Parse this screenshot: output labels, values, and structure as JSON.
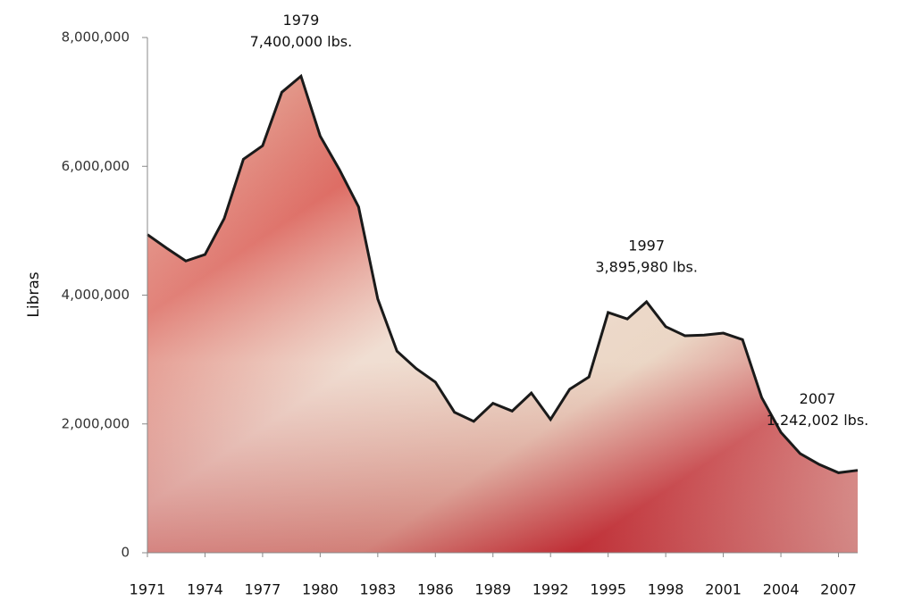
{
  "chart_data": {
    "type": "area",
    "y_label": "Libras",
    "x": [
      1971,
      1972,
      1973,
      1974,
      1975,
      1976,
      1977,
      1978,
      1979,
      1980,
      1981,
      1982,
      1983,
      1984,
      1985,
      1986,
      1987,
      1988,
      1989,
      1990,
      1991,
      1992,
      1993,
      1994,
      1995,
      1996,
      1997,
      1998,
      1999,
      2000,
      2001,
      2002,
      2003,
      2004,
      2005,
      2006,
      2007,
      2008
    ],
    "values": [
      4940000,
      4730000,
      4530000,
      4630000,
      5190000,
      6110000,
      6320000,
      7150000,
      7400000,
      6470000,
      5950000,
      5370000,
      3940000,
      3130000,
      2860000,
      2650000,
      2180000,
      2040000,
      2320000,
      2200000,
      2480000,
      2070000,
      2540000,
      2730000,
      3730000,
      3630000,
      3895980,
      3510000,
      3370000,
      3380000,
      3410000,
      3310000,
      2410000,
      1870000,
      1540000,
      1370000,
      1242002,
      1280000
    ],
    "xlim": [
      1971,
      2008
    ],
    "xticks": [
      1971,
      1974,
      1977,
      1980,
      1983,
      1986,
      1989,
      1992,
      1995,
      1998,
      2001,
      2004,
      2007
    ],
    "ylim": [
      0,
      8000000
    ],
    "yticks": [
      0,
      {
        "value": 2000000,
        "label": "2,000,000"
      },
      {
        "value": 4000000,
        "label": "4,000,000"
      },
      {
        "value": 6000000,
        "label": "6,000,000"
      },
      {
        "value": 8000000,
        "label": "8,000,000"
      }
    ],
    "line_color": "#1a1a1a",
    "annotations": [
      {
        "x": 1979,
        "y": 7400000,
        "label": "7,400,000 lbs."
      },
      {
        "x": 1997,
        "y": 3895980,
        "label": "3,895,980 lbs."
      },
      {
        "x": 2007,
        "y": 1242002,
        "label": "1,242,002 lbs."
      }
    ]
  }
}
